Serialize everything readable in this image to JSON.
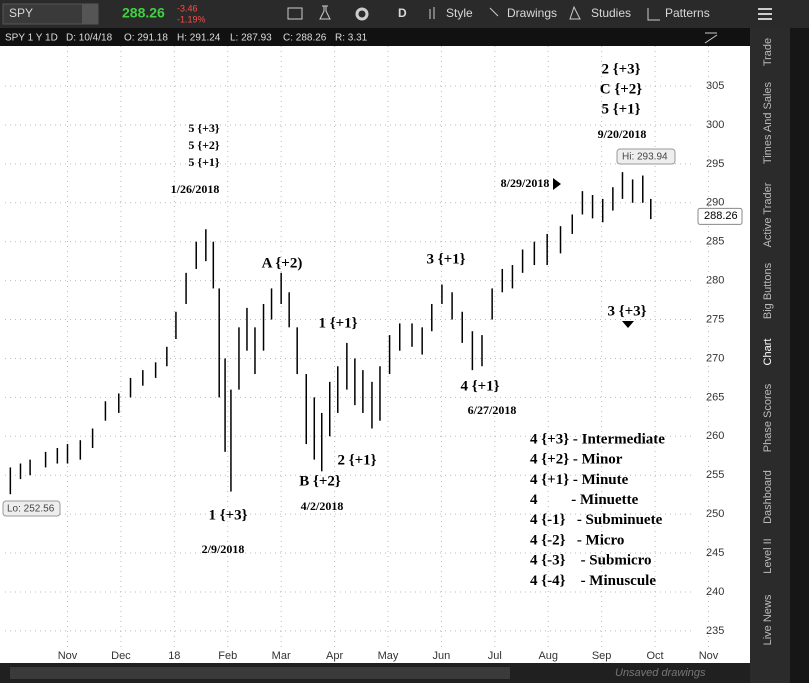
{
  "toolbar": {
    "symbol": "SPY",
    "last": "288.26",
    "change": "-3.46",
    "change_pct": "-1.19%",
    "period": "D",
    "buttons": [
      "Style",
      "Drawings",
      "Studies",
      "Patterns"
    ]
  },
  "info_bar": [
    "SPY 1 Y 1D",
    "D: 10/4/18",
    "O: 291.18",
    "H: 291.24",
    "L: 287.93",
    "C: 288.26",
    "R: 3.31"
  ],
  "sidebar_tabs": [
    "Trade",
    "Times And Sales",
    "Active Trader",
    "Big Buttons",
    "Chart",
    "Phase Scores",
    "Dashboard",
    "Level II",
    "Live News"
  ],
  "footer": {
    "unsaved": "Unsaved drawings"
  },
  "chart_data": {
    "type": "ohlc",
    "color": "#000000",
    "grid": true,
    "x": [
      -0.07,
      0.12,
      0.3,
      0.59,
      0.81,
      1.0,
      1.24,
      1.47,
      1.71,
      1.96,
      2.18,
      2.41,
      2.65,
      2.86,
      3.03,
      3.22,
      3.41,
      3.59,
      3.73,
      3.84,
      3.95,
      4.06,
      4.21,
      4.36,
      4.51,
      4.67,
      4.82,
      5.0,
      5.15,
      5.3,
      5.47,
      5.62,
      5.76,
      5.91,
      6.06,
      6.23,
      6.38,
      6.53,
      6.7,
      6.85,
      7.03,
      7.22,
      7.45,
      7.64,
      7.82,
      8.01,
      8.2,
      8.39,
      8.58,
      8.76,
      8.95,
      9.14,
      9.33,
      9.52,
      9.74,
      9.98,
      10.23,
      10.45,
      10.64,
      10.83,
      11.02,
      11.21,
      11.39,
      11.58,
      11.77,
      11.92
    ],
    "high": [
      256,
      256.5,
      257,
      258,
      258.5,
      259,
      259.5,
      261,
      264.5,
      265.5,
      267.5,
      268.5,
      269.5,
      271.5,
      276,
      281,
      285,
      286.6,
      285,
      279,
      270,
      266,
      274,
      276.5,
      274,
      277,
      279,
      281,
      278.5,
      274,
      268,
      265,
      263,
      267,
      269,
      272,
      270,
      268.5,
      267,
      269,
      273,
      274.5,
      274.5,
      274,
      277,
      279.5,
      278.5,
      276,
      273.5,
      273,
      279,
      281.5,
      282,
      284,
      285,
      286,
      287,
      288.5,
      291.5,
      291,
      290.5,
      292,
      293.94,
      293,
      293.5,
      290.5
    ],
    "low": [
      252.56,
      254.5,
      255,
      256,
      256.5,
      256.5,
      257,
      258.5,
      262,
      263,
      265,
      266.5,
      267.5,
      269,
      272.5,
      277,
      281.5,
      282.5,
      279,
      265,
      258,
      252.9,
      266,
      271,
      268,
      271,
      275,
      277,
      274,
      268,
      259,
      257,
      255.5,
      260,
      263,
      266,
      264,
      263,
      261,
      262,
      268,
      271,
      271.5,
      270.5,
      273.5,
      277,
      275,
      272,
      268.5,
      269,
      275,
      278.5,
      279,
      281,
      282,
      282,
      283.5,
      286,
      288.5,
      288,
      287.5,
      289,
      290.5,
      290,
      290,
      287.9
    ],
    "xlim": [
      -0.17,
      13.74
    ],
    "xticks": [
      {
        "value": 1,
        "label": "Nov"
      },
      {
        "value": 2,
        "label": "Dec"
      },
      {
        "value": 3,
        "label": "18"
      },
      {
        "value": 4,
        "label": "Feb"
      },
      {
        "value": 5,
        "label": "Mar"
      },
      {
        "value": 6,
        "label": "Apr"
      },
      {
        "value": 7,
        "label": "May"
      },
      {
        "value": 8,
        "label": "Jun"
      },
      {
        "value": 9,
        "label": "Jul"
      },
      {
        "value": 10,
        "label": "Aug"
      },
      {
        "value": 11,
        "label": "Sep"
      },
      {
        "value": 12,
        "label": "Oct"
      },
      {
        "value": 13,
        "label": "Nov"
      }
    ],
    "ylim": [
      232.8,
      312.2
    ],
    "yticks": [
      235,
      240,
      245,
      250,
      255,
      260,
      265,
      270,
      275,
      280,
      285,
      290,
      295,
      300,
      305
    ],
    "last_price": 288.26,
    "hi_label": "Hi: 293.94",
    "lo_label": "Lo: 252.56",
    "annotations": [
      "2 {+3}",
      "C {+2}",
      "5 {+1}",
      "9/20/2018",
      "5 {+3}",
      "5 {+2}",
      "5 {+1}",
      "1/26/2018",
      "A {+2)",
      "1 {+1}",
      "3 {+1}",
      "8/29/2018",
      "3 {+3}",
      "4 {+1}",
      "6/27/2018",
      "2 {+1}",
      "B {+2}",
      "4/2/2018",
      "1 {+3}",
      "2/9/2018"
    ],
    "wave_legend": [
      "4 {+3} - Intermediate",
      "4 {+2} - Minor",
      "4 {+1} - Minute",
      "4         - Minuette",
      "4 {-1}   - Subminuete",
      "4 {-2}   - Micro",
      "4 {-3}    - Submicro",
      "4 {-4}    - Minuscule"
    ]
  }
}
